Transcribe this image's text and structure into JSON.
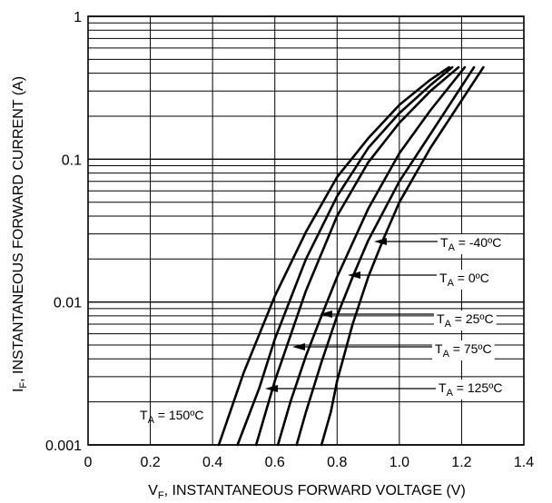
{
  "chart_data": {
    "type": "line",
    "xlabel": "V",
    "xlabel_sub": "F",
    "xlabel_rest": ", INSTANTANEOUS FORWARD VOLTAGE (V)",
    "ylabel": "I",
    "ylabel_sub": "F",
    "ylabel_rest": ", INSTANTANEOUS FORWARD CURRENT (A)",
    "xlim": [
      0,
      1.4
    ],
    "ylim": [
      0.001,
      1
    ],
    "yscale": "log",
    "grid": true,
    "x_ticks": [
      "0",
      "0.2",
      "0.4",
      "0.6",
      "0.8",
      "1.0",
      "1.2",
      "1.4"
    ],
    "y_ticks": [
      "0.001",
      "0.01",
      "0.1",
      "1"
    ],
    "series": [
      {
        "name": "T_A = 150ºC",
        "prefix": "T",
        "sub": "A",
        "suffix": " = 150ºC",
        "x": [
          0.42,
          0.5,
          0.6,
          0.7,
          0.8,
          0.9,
          1.0,
          1.1,
          1.16
        ],
        "y": [
          0.001,
          0.0032,
          0.011,
          0.031,
          0.075,
          0.14,
          0.24,
          0.36,
          0.44
        ]
      },
      {
        "name": "T_A = 125ºC",
        "prefix": "T",
        "sub": "A",
        "suffix": " = 125ºC",
        "x": [
          0.48,
          0.55,
          0.6,
          0.7,
          0.8,
          0.9,
          1.0,
          1.1,
          1.17
        ],
        "y": [
          0.001,
          0.0025,
          0.0055,
          0.02,
          0.055,
          0.12,
          0.21,
          0.33,
          0.44
        ]
      },
      {
        "name": "T_A = 75ºC",
        "prefix": "T",
        "sub": "A",
        "suffix": " = 75ºC",
        "x": [
          0.54,
          0.6,
          0.7,
          0.8,
          0.9,
          1.0,
          1.1,
          1.19
        ],
        "y": [
          0.001,
          0.0028,
          0.012,
          0.04,
          0.095,
          0.18,
          0.3,
          0.44
        ]
      },
      {
        "name": "T_A = 25ºC",
        "prefix": "T",
        "sub": "A",
        "suffix": " = 25ºC",
        "x": [
          0.61,
          0.65,
          0.7,
          0.75,
          0.8,
          0.9,
          1.0,
          1.1,
          1.21
        ],
        "y": [
          0.001,
          0.002,
          0.0042,
          0.008,
          0.015,
          0.045,
          0.11,
          0.22,
          0.44
        ]
      },
      {
        "name": "T_A = 0ºC",
        "prefix": "T",
        "sub": "A",
        "suffix": " = 0ºC",
        "x": [
          0.67,
          0.7,
          0.75,
          0.8,
          0.85,
          0.9,
          1.0,
          1.1,
          1.24
        ],
        "y": [
          0.001,
          0.0017,
          0.0038,
          0.008,
          0.015,
          0.027,
          0.07,
          0.15,
          0.44
        ]
      },
      {
        "name": "T_A = -40ºC",
        "prefix": "T",
        "sub": "A",
        "suffix": " = -40ºC",
        "x": [
          0.75,
          0.78,
          0.8,
          0.85,
          0.9,
          0.95,
          1.0,
          1.1,
          1.27
        ],
        "y": [
          0.001,
          0.0017,
          0.0028,
          0.007,
          0.015,
          0.028,
          0.05,
          0.12,
          0.44
        ]
      }
    ]
  }
}
